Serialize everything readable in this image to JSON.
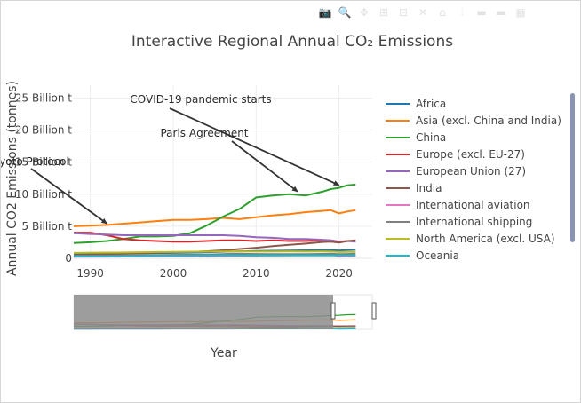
{
  "toolbar": {
    "buttons": [
      {
        "icon": "camera-icon",
        "glyph": "📷"
      },
      {
        "icon": "zoom-icon",
        "glyph": "🔍"
      },
      {
        "icon": "pan-icon",
        "glyph": "✥"
      },
      {
        "icon": "zoom-in-icon",
        "glyph": "⊞"
      },
      {
        "icon": "zoom-out-icon",
        "glyph": "⊟"
      },
      {
        "icon": "autoscale-icon",
        "glyph": "✕"
      },
      {
        "icon": "reset-axes-icon",
        "glyph": "⌂"
      },
      {
        "icon": "spike-lines-icon",
        "glyph": "⫶"
      },
      {
        "icon": "hover-closest-icon",
        "glyph": "▬"
      },
      {
        "icon": "hover-compare-icon",
        "glyph": "▬"
      },
      {
        "icon": "plotly-logo-icon",
        "glyph": "▦"
      }
    ]
  },
  "chart_data": {
    "type": "line",
    "title": "Interactive Regional Annual CO₂ Emissions",
    "xlabel": "Year",
    "ylabel": "Annual CO2 Emissions (tonnes)",
    "xlim": [
      1988,
      2024
    ],
    "ylim": [
      0,
      27000000000
    ],
    "x_ticks": [
      1990,
      2000,
      2010,
      2020
    ],
    "y_ticks": [
      {
        "value": 0,
        "label": "0"
      },
      {
        "value": 5000000000,
        "label": "5 Billion t"
      },
      {
        "value": 10000000000,
        "label": "10 Billion t"
      },
      {
        "value": 15000000000,
        "label": "15 Billion t"
      },
      {
        "value": 20000000000,
        "label": "20 Billion t"
      },
      {
        "value": 25000000000,
        "label": "25 Billion t"
      }
    ],
    "grid": true,
    "legend_position": "right",
    "range_slider": true,
    "x": [
      1988,
      1990,
      1992,
      1994,
      1996,
      1998,
      2000,
      2002,
      2004,
      2006,
      2008,
      2010,
      2012,
      2014,
      2016,
      2018,
      2019,
      2020,
      2021,
      2022
    ],
    "series": [
      {
        "name": "Africa",
        "color": "#1f77b4",
        "values": [
          0.65,
          0.7,
          0.72,
          0.74,
          0.78,
          0.82,
          0.85,
          0.88,
          0.95,
          1.02,
          1.1,
          1.15,
          1.18,
          1.22,
          1.25,
          1.3,
          1.32,
          1.22,
          1.3,
          1.35
        ]
      },
      {
        "name": "Asia (excl. China and India)",
        "color": "#ff7f0e",
        "values": [
          5.0,
          5.1,
          5.2,
          5.4,
          5.6,
          5.8,
          6.0,
          6.0,
          6.1,
          6.3,
          6.1,
          6.4,
          6.7,
          6.9,
          7.2,
          7.4,
          7.5,
          7.0,
          7.3,
          7.5
        ]
      },
      {
        "name": "China",
        "color": "#2ca02c",
        "values": [
          2.4,
          2.5,
          2.7,
          3.0,
          3.4,
          3.4,
          3.5,
          3.9,
          5.1,
          6.5,
          7.7,
          9.5,
          9.8,
          10.0,
          9.8,
          10.4,
          10.8,
          11.0,
          11.4,
          11.5
        ]
      },
      {
        "name": "Europe (excl. EU-27)",
        "color": "#d62728",
        "values": [
          4.0,
          4.0,
          3.6,
          3.0,
          2.8,
          2.7,
          2.6,
          2.6,
          2.7,
          2.8,
          2.8,
          2.7,
          2.8,
          2.7,
          2.7,
          2.8,
          2.8,
          2.6,
          2.7,
          2.7
        ]
      },
      {
        "name": "European Union (27)",
        "color": "#9467bd",
        "values": [
          3.9,
          3.8,
          3.7,
          3.6,
          3.6,
          3.6,
          3.6,
          3.6,
          3.6,
          3.6,
          3.5,
          3.3,
          3.2,
          3.0,
          3.0,
          2.9,
          2.8,
          2.5,
          2.7,
          2.6
        ]
      },
      {
        "name": "India",
        "color": "#8c564b",
        "values": [
          0.5,
          0.58,
          0.65,
          0.72,
          0.8,
          0.88,
          0.95,
          1.0,
          1.1,
          1.25,
          1.45,
          1.65,
          1.9,
          2.1,
          2.3,
          2.55,
          2.6,
          2.45,
          2.7,
          2.8
        ]
      },
      {
        "name": "International aviation",
        "color": "#e377c2",
        "values": [
          0.25,
          0.26,
          0.27,
          0.28,
          0.29,
          0.31,
          0.33,
          0.32,
          0.35,
          0.38,
          0.4,
          0.41,
          0.44,
          0.47,
          0.52,
          0.56,
          0.58,
          0.3,
          0.33,
          0.4
        ]
      },
      {
        "name": "International shipping",
        "color": "#7f7f7f",
        "values": [
          0.4,
          0.42,
          0.43,
          0.45,
          0.47,
          0.5,
          0.54,
          0.56,
          0.6,
          0.66,
          0.7,
          0.68,
          0.66,
          0.65,
          0.67,
          0.69,
          0.7,
          0.65,
          0.68,
          0.7
        ]
      },
      {
        "name": "North America (excl. USA)",
        "color": "#bcbd22",
        "values": [
          0.85,
          0.88,
          0.9,
          0.92,
          0.95,
          0.98,
          1.0,
          1.02,
          1.05,
          1.08,
          1.08,
          1.05,
          1.05,
          1.06,
          1.05,
          1.06,
          1.05,
          0.98,
          1.0,
          1.0
        ]
      },
      {
        "name": "Oceania",
        "color": "#17becf",
        "values": [
          0.3,
          0.31,
          0.32,
          0.33,
          0.35,
          0.37,
          0.39,
          0.4,
          0.42,
          0.44,
          0.46,
          0.46,
          0.46,
          0.45,
          0.45,
          0.46,
          0.46,
          0.44,
          0.44,
          0.44
        ]
      }
    ],
    "value_unit": "billion tonnes",
    "annotations": [
      {
        "text": "COVID-19 pandemic starts",
        "x": 2020,
        "y": 11.0
      },
      {
        "text": "Paris Agreement",
        "x": 2015,
        "y": 10.0
      },
      {
        "text": "Kyoto Protocol",
        "x": 1992,
        "y": 5.0
      }
    ]
  }
}
